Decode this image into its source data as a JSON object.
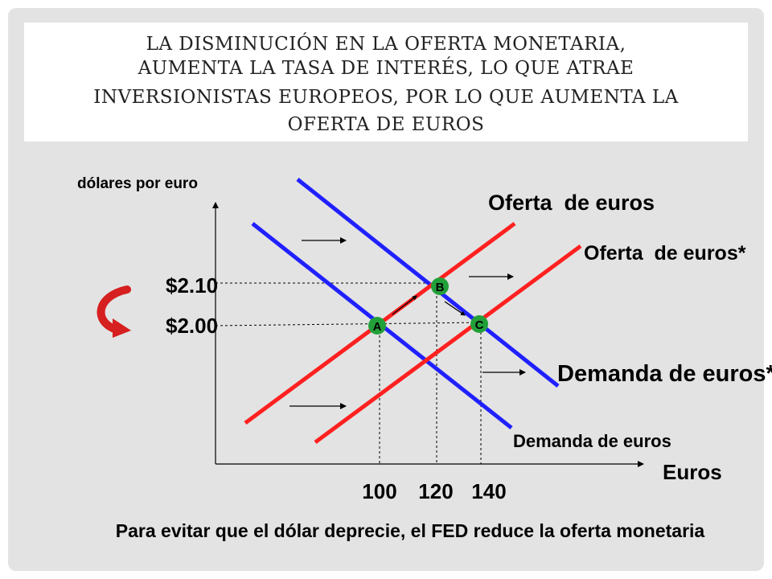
{
  "title_lines": [
    "LA DISMINUCIÓN EN LA OFERTA MONETARIA,",
    "AUMENTA LA TASA DE INTERÉS, LO QUE ATRAE",
    "INVERSIONISTAS EUROPEOS, POR LO QUE AUMENTA LA",
    "OFERTA DE EUROS"
  ],
  "caption": "Para evitar que el dólar deprecie, el FED reduce la oferta monetaria",
  "colors": {
    "supply": "#ff2020",
    "demand": "#2020ff",
    "point": "#22a039",
    "arrow_curve": "#d61f1f"
  },
  "chart_data": {
    "type": "line",
    "ylabel": "dólares por euro",
    "xlabel": "Euros",
    "y_ticks": [
      "$2.10",
      "$2.00"
    ],
    "x_ticks": [
      "100",
      "120",
      "140"
    ],
    "series": [
      {
        "name": "Oferta  de euros",
        "color": "#ff2020"
      },
      {
        "name": "Oferta  de euros*",
        "color": "#ff2020"
      },
      {
        "name": "Demanda de euros*",
        "color": "#2020ff"
      },
      {
        "name": "Demanda de euros",
        "color": "#2020ff"
      }
    ],
    "points": [
      {
        "label": "A",
        "x": 100,
        "y": 2.0
      },
      {
        "label": "B",
        "x": 120,
        "y": 2.1
      },
      {
        "label": "C",
        "x": 140,
        "y": 2.0
      }
    ]
  }
}
